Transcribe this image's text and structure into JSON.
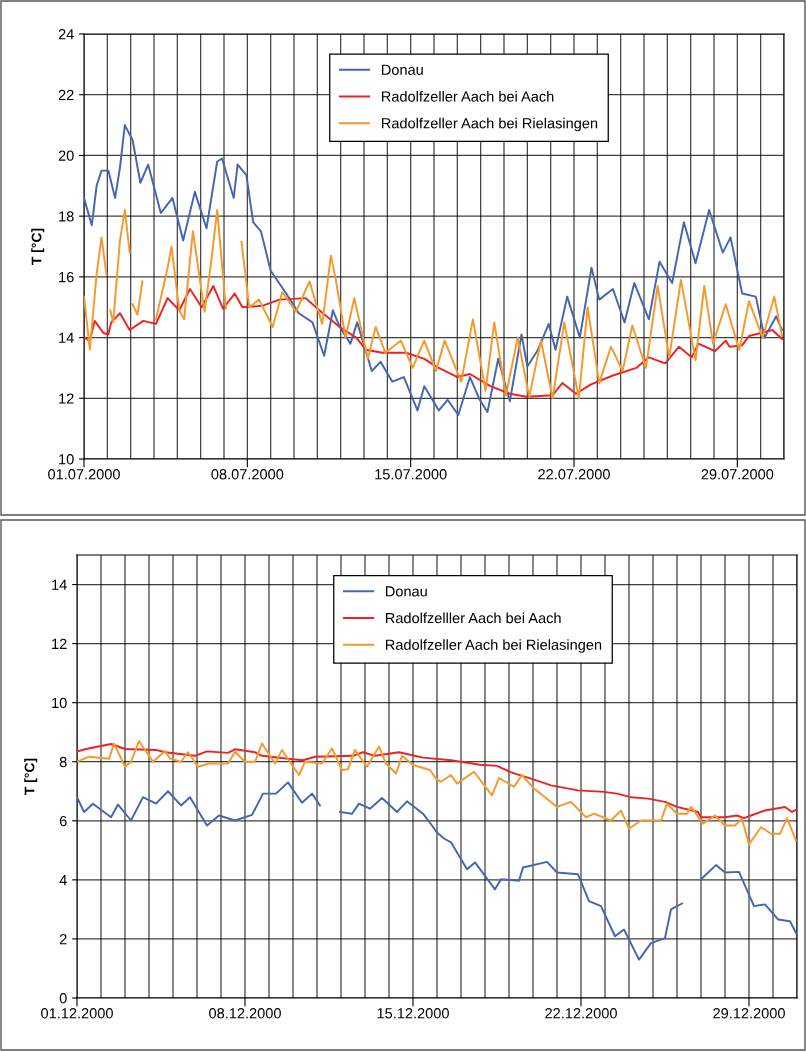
{
  "chart_data": [
    {
      "type": "line",
      "ylabel": "T [°C]",
      "xlim": [
        "2000-07-01",
        "2000-07-31"
      ],
      "ylim": [
        10,
        24
      ],
      "yticks": [
        10,
        12,
        14,
        16,
        18,
        20,
        22,
        24
      ],
      "xticks": [
        {
          "value": "2000-07-01",
          "label": "01.07.2000"
        },
        {
          "value": "2000-07-02",
          "label": null
        },
        {
          "value": "2000-07-03",
          "label": null
        },
        {
          "value": "2000-07-04",
          "label": null
        },
        {
          "value": "2000-07-05",
          "label": null
        },
        {
          "value": "2000-07-06",
          "label": null
        },
        {
          "value": "2000-07-07",
          "label": null
        },
        {
          "value": "2000-07-08",
          "label": "08.07.2000"
        },
        {
          "value": "2000-07-09",
          "label": null
        },
        {
          "value": "2000-07-10",
          "label": null
        },
        {
          "value": "2000-07-11",
          "label": null
        },
        {
          "value": "2000-07-12",
          "label": null
        },
        {
          "value": "2000-07-13",
          "label": null
        },
        {
          "value": "2000-07-14",
          "label": null
        },
        {
          "value": "2000-07-15",
          "label": "15.07.2000"
        },
        {
          "value": "2000-07-16",
          "label": null
        },
        {
          "value": "2000-07-17",
          "label": null
        },
        {
          "value": "2000-07-18",
          "label": null
        },
        {
          "value": "2000-07-19",
          "label": null
        },
        {
          "value": "2000-07-20",
          "label": null
        },
        {
          "value": "2000-07-21",
          "label": null
        },
        {
          "value": "2000-07-22",
          "label": "22.07.2000"
        },
        {
          "value": "2000-07-23",
          "label": null
        },
        {
          "value": "2000-07-24",
          "label": null
        },
        {
          "value": "2000-07-25",
          "label": null
        },
        {
          "value": "2000-07-26",
          "label": null
        },
        {
          "value": "2000-07-27",
          "label": null
        },
        {
          "value": "2000-07-28",
          "label": null
        },
        {
          "value": "2000-07-29",
          "label": "29.07.2000"
        },
        {
          "value": "2000-07-30",
          "label": null
        },
        {
          "value": "2000-07-31",
          "label": null
        }
      ],
      "grid": true,
      "legend": "top",
      "marker": "none",
      "line_style": "solid",
      "series": [
        {
          "name": "Donau",
          "color": "#4466b0",
          "x": [
            "2000-07-01T00:00",
            "2000-07-01T08:00",
            "2000-07-01T13:00",
            "2000-07-01T18:00",
            "2000-07-02T01:00",
            "2000-07-02T08:00",
            "2000-07-02T13:00",
            "2000-07-02T18:00",
            "2000-07-03T02:00",
            "2000-07-03T10:00",
            "2000-07-03T18:00",
            "2000-07-04T07:00",
            "2000-07-04T19:00",
            "2000-07-05T06:00",
            "2000-07-05T18:00",
            "2000-07-06T06:00",
            "2000-07-06T17:00",
            "2000-07-06T22:00",
            "2000-07-07T10:00",
            "2000-07-07T14:00",
            "2000-07-07T23:00",
            "2000-07-08T06:00",
            "2000-07-08T14:00",
            "2000-07-09T00:00",
            "2000-07-09T16:00",
            "2000-07-10T05:00",
            "2000-07-10T19:00",
            "2000-07-11T07:00",
            "2000-07-11T16:00",
            "2000-07-11T23:00",
            "2000-07-12T10:00",
            "2000-07-12T17:00",
            "2000-07-13T08:00",
            "2000-07-13T17:00",
            "2000-07-14T05:00",
            "2000-07-14T17:00",
            "2000-07-15T07:00",
            "2000-07-15T14:00",
            "2000-07-16T05:00",
            "2000-07-16T14:00",
            "2000-07-17T01:00",
            "2000-07-17T13:00",
            "2000-07-17T23:00",
            "2000-07-18T07:00",
            "2000-07-18T18:00",
            "2000-07-19T06:00",
            "2000-07-19T18:00",
            "2000-07-20T00:00",
            "2000-07-20T11:00",
            "2000-07-20T22:00",
            "2000-07-21T05:00",
            "2000-07-21T17:00",
            "2000-07-22T06:00",
            "2000-07-22T18:00",
            "2000-07-23T02:00",
            "2000-07-23T16:00",
            "2000-07-24T04:00",
            "2000-07-24T14:00",
            "2000-07-25T05:00",
            "2000-07-25T16:00",
            "2000-07-26T05:00",
            "2000-07-26T17:00",
            "2000-07-27T05:00",
            "2000-07-27T19:00",
            "2000-07-28T09:00",
            "2000-07-28T17:00",
            "2000-07-29T05:00",
            "2000-07-29T19:00",
            "2000-07-30T04:00",
            "2000-07-30T16:00",
            "2000-07-30T22:00"
          ],
          "values": [
            18.6,
            17.7,
            19.0,
            19.5,
            19.5,
            18.6,
            19.6,
            21.0,
            20.5,
            19.1,
            19.7,
            18.1,
            18.6,
            17.2,
            18.8,
            17.6,
            19.8,
            19.9,
            18.6,
            19.7,
            19.35,
            17.8,
            17.5,
            16.2,
            15.45,
            14.8,
            14.5,
            13.4,
            14.9,
            14.35,
            13.8,
            14.5,
            12.9,
            13.2,
            12.55,
            12.7,
            11.6,
            12.4,
            11.6,
            11.95,
            11.45,
            12.7,
            11.95,
            11.55,
            13.3,
            11.9,
            14.1,
            13.05,
            13.6,
            14.45,
            13.6,
            15.35,
            14.0,
            16.3,
            15.25,
            15.6,
            14.5,
            15.8,
            14.6,
            16.5,
            15.8,
            17.8,
            16.45,
            18.2,
            16.8,
            17.3,
            15.45,
            15.35,
            14.0,
            14.7,
            14.25
          ]
        },
        {
          "name": "Radolfzeller Aach bei Aach",
          "color": "#ee2222",
          "x": [
            "2000-07-01T00:00",
            "2000-07-01T06:00",
            "2000-07-01T11:00",
            "2000-07-01T20:00",
            "2000-07-02T01:00",
            "2000-07-02T04:00",
            "2000-07-02T13:00",
            "2000-07-02T23:00",
            "2000-07-03T13:00",
            "2000-07-04T02:00",
            "2000-07-04T14:00",
            "2000-07-05T02:00",
            "2000-07-05T13:00",
            "2000-07-06T01:00",
            "2000-07-06T13:00",
            "2000-07-06T23:00",
            "2000-07-07T11:00",
            "2000-07-07T19:00",
            "2000-07-08T16:00",
            "2000-07-09T09:00",
            "2000-07-10T12:00",
            "2000-07-11T02:00",
            "2000-07-11T23:00",
            "2000-07-12T16:00",
            "2000-07-13T02:00",
            "2000-07-13T19:00",
            "2000-07-14T19:00",
            "2000-07-15T14:00",
            "2000-07-16T02:00",
            "2000-07-17T00:00",
            "2000-07-17T13:00",
            "2000-07-18T10:00",
            "2000-07-19T06:00",
            "2000-07-19T23:00",
            "2000-07-21T02:00",
            "2000-07-21T12:00",
            "2000-07-22T02:00",
            "2000-07-22T17:00",
            "2000-07-23T16:00",
            "2000-07-24T16:00",
            "2000-07-25T05:00",
            "2000-07-25T22:00",
            "2000-07-26T12:00",
            "2000-07-27T01:00",
            "2000-07-27T08:00",
            "2000-07-28T01:00",
            "2000-07-28T12:00",
            "2000-07-28T16:00",
            "2000-07-29T05:00",
            "2000-07-29T12:00",
            "2000-07-30T12:00",
            "2000-07-30T22:00"
          ],
          "values": [
            14.0,
            13.9,
            14.55,
            14.15,
            14.1,
            14.5,
            14.8,
            14.25,
            14.55,
            14.45,
            15.3,
            14.9,
            15.6,
            15.0,
            15.7,
            14.95,
            15.45,
            15.0,
            15.05,
            15.25,
            15.3,
            14.9,
            14.35,
            14.0,
            13.6,
            13.5,
            13.5,
            13.3,
            13.05,
            12.7,
            12.8,
            12.4,
            12.15,
            12.05,
            12.1,
            12.5,
            12.15,
            12.45,
            12.75,
            13.0,
            13.35,
            13.15,
            13.7,
            13.35,
            13.8,
            13.55,
            13.9,
            13.7,
            13.75,
            14.05,
            14.25,
            13.95
          ]
        },
        {
          "name": "Radolfzeller Aach bei Rielasingen",
          "color": "#f7982a",
          "x": [
            "2000-07-01T00:00",
            "2000-07-01T06:00",
            "2000-07-01T13:00",
            "2000-07-01T18:00",
            "2000-07-01T23:00",
            "2000-07-02T01:00",
            "2000-07-02T03:00",
            "2000-07-02T06:00",
            "2000-07-02T13:00",
            "2000-07-02T18:00",
            "2000-07-02T23:00",
            "2000-07-03T01:00",
            "2000-07-03T02:00",
            "2000-07-03T07:00",
            "2000-07-03T12:00",
            "2000-07-03T20:00",
            "2000-07-04T02:00",
            "2000-07-04T14:00",
            "2000-07-04T18:00",
            "2000-07-05T02:00",
            "2000-07-05T07:00",
            "2000-07-05T16:00",
            "2000-07-06T04:00",
            "2000-07-06T11:00",
            "2000-07-06T17:00",
            "2000-07-07T02:00",
            "2000-07-07T10:00",
            "2000-07-07T18:00",
            "2000-07-08T02:00",
            "2000-07-08T12:00",
            "2000-07-09T02:00",
            "2000-07-09T12:00",
            "2000-07-10T02:00",
            "2000-07-10T16:00",
            "2000-07-11T05:00",
            "2000-07-11T14:00",
            "2000-07-11T19:00",
            "2000-07-12T05:00",
            "2000-07-12T14:00",
            "2000-07-13T04:00",
            "2000-07-13T12:00",
            "2000-07-13T22:00",
            "2000-07-14T14:00",
            "2000-07-15T02:00",
            "2000-07-15T14:00",
            "2000-07-16T02:00",
            "2000-07-16T11:00",
            "2000-07-17T04:00",
            "2000-07-17T16:00",
            "2000-07-18T05:00",
            "2000-07-18T14:00",
            "2000-07-19T02:00",
            "2000-07-19T14:00",
            "2000-07-20T02:00",
            "2000-07-20T14:00",
            "2000-07-21T02:00",
            "2000-07-21T14:00",
            "2000-07-22T05:00",
            "2000-07-22T14:00",
            "2000-07-23T02:00",
            "2000-07-23T14:00",
            "2000-07-24T02:00",
            "2000-07-24T12:00",
            "2000-07-25T02:00",
            "2000-07-25T14:00",
            "2000-07-26T02:00",
            "2000-07-26T14:00",
            "2000-07-27T05:00",
            "2000-07-27T14:00",
            "2000-07-27T23:00",
            "2000-07-28T12:00",
            "2000-07-29T02:00",
            "2000-07-29T12:00",
            "2000-07-30T02:00",
            "2000-07-30T14:00",
            "2000-07-30T22:00"
          ],
          "values": [
            15.35,
            13.6,
            16.1,
            17.3,
            16.1,
            null,
            14.9,
            14.5,
            17.2,
            18.2,
            16.8,
            null,
            15.1,
            14.75,
            15.85,
            null,
            14.6,
            16.3,
            17.0,
            14.9,
            14.6,
            17.5,
            14.85,
            16.55,
            18.2,
            14.95,
            null,
            17.15,
            15.0,
            15.25,
            14.35,
            15.5,
            14.85,
            15.85,
            14.45,
            16.7,
            15.9,
            14.0,
            15.3,
            13.3,
            14.35,
            13.5,
            13.9,
            13.0,
            13.9,
            12.9,
            13.9,
            12.55,
            14.6,
            12.25,
            14.5,
            12.1,
            14.0,
            12.05,
            13.9,
            12.0,
            14.5,
            12.0,
            15.0,
            12.5,
            13.7,
            12.9,
            14.4,
            13.0,
            15.7,
            13.35,
            15.9,
            13.25,
            15.7,
            13.8,
            15.1,
            13.6,
            15.2,
            14.0,
            15.35,
            14.05
          ]
        }
      ]
    },
    {
      "type": "line",
      "ylabel": "T [°C]",
      "xlim": [
        "2000-12-01",
        "2000-12-31"
      ],
      "ylim": [
        0,
        15
      ],
      "yticks": [
        0,
        2,
        4,
        6,
        8,
        10,
        12,
        14
      ],
      "xticks": [
        {
          "value": "2000-12-01",
          "label": "01.12.2000"
        },
        {
          "value": "2000-12-02",
          "label": null
        },
        {
          "value": "2000-12-03",
          "label": null
        },
        {
          "value": "2000-12-04",
          "label": null
        },
        {
          "value": "2000-12-05",
          "label": null
        },
        {
          "value": "2000-12-06",
          "label": null
        },
        {
          "value": "2000-12-07",
          "label": null
        },
        {
          "value": "2000-12-08",
          "label": "08.12.2000"
        },
        {
          "value": "2000-12-09",
          "label": null
        },
        {
          "value": "2000-12-10",
          "label": null
        },
        {
          "value": "2000-12-11",
          "label": null
        },
        {
          "value": "2000-12-12",
          "label": null
        },
        {
          "value": "2000-12-13",
          "label": null
        },
        {
          "value": "2000-12-14",
          "label": null
        },
        {
          "value": "2000-12-15",
          "label": "15.12.2000"
        },
        {
          "value": "2000-12-16",
          "label": null
        },
        {
          "value": "2000-12-17",
          "label": null
        },
        {
          "value": "2000-12-18",
          "label": null
        },
        {
          "value": "2000-12-19",
          "label": null
        },
        {
          "value": "2000-12-20",
          "label": null
        },
        {
          "value": "2000-12-21",
          "label": null
        },
        {
          "value": "2000-12-22",
          "label": "22.12.2000"
        },
        {
          "value": "2000-12-23",
          "label": null
        },
        {
          "value": "2000-12-24",
          "label": null
        },
        {
          "value": "2000-12-25",
          "label": null
        },
        {
          "value": "2000-12-26",
          "label": null
        },
        {
          "value": "2000-12-27",
          "label": null
        },
        {
          "value": "2000-12-28",
          "label": null
        },
        {
          "value": "2000-12-29",
          "label": "29.12.2000"
        },
        {
          "value": "2000-12-30",
          "label": null
        },
        {
          "value": "2000-12-31",
          "label": null
        }
      ],
      "grid": true,
      "legend": "top",
      "marker": "none",
      "line_style": "solid",
      "series": [
        {
          "name": "Donau",
          "color": "#4466b0",
          "x": [
            "2000-12-01T00:00",
            "2000-12-01T07:00",
            "2000-12-01T16:00",
            "2000-12-02T10:00",
            "2000-12-02T17:00",
            "2000-12-03T06:00",
            "2000-12-03T18:00",
            "2000-12-04T07:00",
            "2000-12-04T19:00",
            "2000-12-05T08:00",
            "2000-12-05T17:00",
            "2000-12-06T10:00",
            "2000-12-06T22:00",
            "2000-12-07T14:00",
            "2000-12-08T07:00",
            "2000-12-08T18:00",
            "2000-12-09T07:00",
            "2000-12-09T19:00",
            "2000-12-10T09:00",
            "2000-12-10T19:00",
            "2000-12-11T03:00",
            "2000-12-11T12:00",
            "2000-12-11T23:00",
            "2000-12-12T11:00",
            "2000-12-12T18:00",
            "2000-12-13T05:00",
            "2000-12-13T17:00",
            "2000-12-14T08:00",
            "2000-12-14T18:00",
            "2000-12-15T10:00",
            "2000-12-15T19:00",
            "2000-12-16T00:00",
            "2000-12-16T07:00",
            "2000-12-16T14:00",
            "2000-12-17T06:00",
            "2000-12-17T14:00",
            "2000-12-18T10:00",
            "2000-12-18T16:00",
            "2000-12-19T10:00",
            "2000-12-19T14:00",
            "2000-12-20T14:00",
            "2000-12-21T00:00",
            "2000-12-21T21:00",
            "2000-12-22T08:00",
            "2000-12-22T20:00",
            "2000-12-23T10:00",
            "2000-12-23T19:00",
            "2000-12-24T10:00",
            "2000-12-24T22:00",
            "2000-12-25T12:00",
            "2000-12-25T18:00",
            "2000-12-26T05:00",
            "2000-12-26T14:00",
            "2000-12-27T00:00",
            "2000-12-27T15:00",
            "2000-12-28T00:00",
            "2000-12-28T14:00",
            "2000-12-29T05:00",
            "2000-12-29T16:00",
            "2000-12-30T05:00",
            "2000-12-30T17:00",
            "2000-12-30T23:00"
          ],
          "values": [
            6.8,
            6.3,
            6.58,
            6.12,
            6.55,
            6.01,
            6.8,
            6.58,
            7.0,
            6.52,
            6.8,
            5.84,
            6.18,
            6.01,
            6.2,
            6.92,
            6.92,
            7.3,
            6.61,
            6.92,
            6.52,
            null,
            6.3,
            6.24,
            6.58,
            6.41,
            6.77,
            6.3,
            6.66,
            6.24,
            5.84,
            5.6,
            5.4,
            5.27,
            4.36,
            4.59,
            3.68,
            4.02,
            3.97,
            4.42,
            4.61,
            4.25,
            4.19,
            3.28,
            3.11,
            2.09,
            2.32,
            1.3,
            1.86,
            2.03,
            3.0,
            3.2,
            null,
            4.02,
            4.5,
            4.25,
            4.27,
            3.11,
            3.17,
            2.66,
            2.6,
            2.2
          ]
        },
        {
          "name": "Radolfzelller Aach bei Aach",
          "color": "#ee2222",
          "x": [
            "2000-12-01T00:00",
            "2000-12-01T09:00",
            "2000-12-02T10:00",
            "2000-12-03T00:00",
            "2000-12-04T07:00",
            "2000-12-04T16:00",
            "2000-12-05T22:00",
            "2000-12-06T10:00",
            "2000-12-07T07:00",
            "2000-12-07T14:00",
            "2000-12-08T10:00",
            "2000-12-08T17:00",
            "2000-12-09T19:00",
            "2000-12-10T10:00",
            "2000-12-10T22:00",
            "2000-12-12T12:00",
            "2000-12-12T22:00",
            "2000-12-13T10:00",
            "2000-12-14T10:00",
            "2000-12-15T10:00",
            "2000-12-16T14:00",
            "2000-12-17T19:00",
            "2000-12-18T12:00",
            "2000-12-19T02:00",
            "2000-12-19T22:00",
            "2000-12-20T18:00",
            "2000-12-21T21:00",
            "2000-12-22T23:00",
            "2000-12-23T12:00",
            "2000-12-24T02:00",
            "2000-12-24T19:00",
            "2000-12-25T12:00",
            "2000-12-26T00:00",
            "2000-12-26T21:00",
            "2000-12-27T00:00",
            "2000-12-28T00:00",
            "2000-12-28T12:00",
            "2000-12-28T19:00",
            "2000-12-29T02:00",
            "2000-12-29T16:00",
            "2000-12-30T12:00",
            "2000-12-30T19:00",
            "2000-12-31T00:00"
          ],
          "values": [
            8.35,
            8.43,
            8.6,
            8.43,
            8.4,
            8.32,
            8.2,
            8.35,
            8.3,
            8.42,
            8.32,
            8.2,
            8.1,
            8.05,
            8.17,
            8.2,
            8.32,
            8.2,
            8.32,
            8.14,
            8.05,
            7.9,
            7.86,
            7.64,
            7.43,
            7.2,
            7.03,
            6.98,
            6.92,
            6.8,
            6.75,
            6.64,
            6.47,
            6.3,
            6.12,
            6.12,
            6.18,
            6.09,
            6.18,
            6.35,
            6.47,
            6.3,
            6.39
          ]
        },
        {
          "name": "Radolfzeller Aach bei Rielasingen",
          "color": "#f7982a",
          "x": [
            "2000-12-01T00:00",
            "2000-12-01T12:00",
            "2000-12-02T08:00",
            "2000-12-02T13:00",
            "2000-12-03T00:00",
            "2000-12-03T06:00",
            "2000-12-03T14:00",
            "2000-12-03T19:00",
            "2000-12-04T04:00",
            "2000-12-04T16:00",
            "2000-12-04T21:00",
            "2000-12-05T08:00",
            "2000-12-05T15:00",
            "2000-12-06T01:00",
            "2000-12-06T12:00",
            "2000-12-07T07:00",
            "2000-12-07T14:00",
            "2000-12-08T00:00",
            "2000-12-08T10:00",
            "2000-12-08T17:00",
            "2000-12-09T06:00",
            "2000-12-09T13:00",
            "2000-12-09T23:00",
            "2000-12-10T06:00",
            "2000-12-10T12:00",
            "2000-12-11T05:00",
            "2000-12-11T15:00",
            "2000-12-12T01:00",
            "2000-12-12T07:00",
            "2000-12-12T14:00",
            "2000-12-13T02:00",
            "2000-12-13T14:00",
            "2000-12-13T21:00",
            "2000-12-14T07:00",
            "2000-12-14T13:00",
            "2000-12-15T00:00",
            "2000-12-15T17:00",
            "2000-12-15T23:00",
            "2000-12-16T04:00",
            "2000-12-16T14:00",
            "2000-12-16T20:00",
            "2000-12-17T13:00",
            "2000-12-18T07:00",
            "2000-12-18T14:00",
            "2000-12-19T05:00",
            "2000-12-19T13:00",
            "2000-12-20T01:00",
            "2000-12-21T00:00",
            "2000-12-21T14:00",
            "2000-12-22T05:00",
            "2000-12-22T13:00",
            "2000-12-23T06:00",
            "2000-12-23T16:00",
            "2000-12-24T00:00",
            "2000-12-24T12:00",
            "2000-12-25T08:00",
            "2000-12-25T14:00",
            "2000-12-26T00:00",
            "2000-12-26T10:00",
            "2000-12-26T14:00",
            "2000-12-27T02:00",
            "2000-12-27T14:00",
            "2000-12-28T00:00",
            "2000-12-28T10:00",
            "2000-12-28T17:00",
            "2000-12-29T00:00",
            "2000-12-29T12:00",
            "2000-12-29T22:00",
            "2000-12-30T07:00",
            "2000-12-30T14:00",
            "2000-12-30T23:00"
          ],
          "values": [
            8.0,
            8.17,
            8.1,
            8.62,
            7.83,
            8.0,
            8.7,
            8.45,
            8.0,
            8.36,
            8.11,
            8.0,
            8.32,
            7.83,
            7.94,
            7.94,
            8.34,
            8.0,
            8.0,
            8.62,
            7.94,
            8.4,
            7.89,
            7.55,
            8.0,
            7.94,
            8.45,
            7.72,
            7.75,
            8.4,
            7.83,
            8.51,
            7.94,
            7.6,
            8.2,
            7.89,
            7.72,
            7.43,
            7.32,
            7.55,
            7.26,
            7.66,
            6.86,
            7.45,
            7.15,
            7.55,
            7.09,
            6.47,
            6.64,
            6.12,
            6.24,
            6.01,
            6.35,
            5.73,
            6.01,
            6.01,
            6.58,
            6.24,
            6.24,
            6.47,
            5.9,
            6.18,
            5.84,
            5.84,
            6.07,
            5.2,
            5.78,
            5.56,
            5.56,
            6.09,
            5.33
          ]
        }
      ]
    }
  ]
}
